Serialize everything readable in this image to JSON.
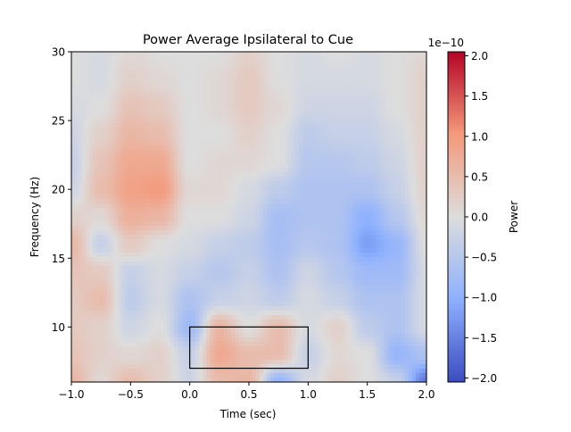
{
  "chart_data": {
    "type": "heatmap",
    "title": "Power Average Ipsilateral to Cue",
    "xlabel": "Time (sec)",
    "ylabel": "Frequency (Hz)",
    "xlim": [
      -1.0,
      2.0
    ],
    "ylim": [
      6,
      30
    ],
    "x_ticks": [
      "−1.0",
      "−0.5",
      "0.0",
      "0.5",
      "1.0",
      "1.5",
      "2.0"
    ],
    "x_tick_values": [
      -1.0,
      -0.5,
      0.0,
      0.5,
      1.0,
      1.5,
      2.0
    ],
    "y_ticks": [
      "10",
      "15",
      "20",
      "25",
      "30"
    ],
    "y_tick_values": [
      10,
      15,
      20,
      25,
      30
    ],
    "colormap": "coolwarm",
    "colorbar": {
      "label": "Power",
      "scale_label": "1e−10",
      "range": [
        -2.05,
        2.05
      ],
      "ticks": [
        "−2.0",
        "−1.5",
        "−1.0",
        "−0.5",
        "0.0",
        "0.5",
        "1.0",
        "1.5",
        "2.0"
      ],
      "tick_values": [
        -2.0,
        -1.5,
        -1.0,
        -0.5,
        0.0,
        0.5,
        1.0,
        1.5,
        2.0
      ]
    },
    "value_unit_scale": "1e-10",
    "times": [
      -1.0,
      -0.75,
      -0.5,
      -0.25,
      0.0,
      0.25,
      0.5,
      0.75,
      1.0,
      1.25,
      1.5,
      1.75,
      2.0
    ],
    "freqs": [
      30,
      28,
      26,
      24,
      22,
      20,
      18,
      16,
      14,
      12,
      10,
      8,
      6
    ],
    "values": [
      [
        0,
        -0.1,
        0.1,
        0,
        0,
        0,
        0.2,
        0,
        -0.1,
        0,
        -0.1,
        0,
        0.1
      ],
      [
        0,
        -0.1,
        0.2,
        0.1,
        0,
        0.1,
        0.3,
        0,
        -0.1,
        -0.1,
        -0.1,
        0,
        0.2
      ],
      [
        -0.1,
        0,
        0.4,
        0.3,
        0,
        0.1,
        0.3,
        0.1,
        -0.2,
        -0.2,
        -0.2,
        0,
        0.2
      ],
      [
        -0.2,
        0.2,
        0.6,
        0.5,
        0,
        0,
        0.2,
        0,
        -0.4,
        -0.3,
        -0.3,
        -0.1,
        0.2
      ],
      [
        -0.3,
        0.4,
        0.8,
        0.8,
        0,
        0.1,
        0.1,
        0,
        -0.5,
        -0.5,
        -0.4,
        -0.2,
        0.2
      ],
      [
        -0.2,
        0.5,
        0.9,
        1.0,
        0.1,
        0.1,
        -0.1,
        -0.4,
        -0.6,
        -0.6,
        -0.6,
        -0.3,
        0.2
      ],
      [
        0.2,
        0.1,
        0.7,
        0.6,
        0,
        0,
        -0.2,
        -0.7,
        -0.6,
        -0.6,
        -1.0,
        -0.5,
        0.1
      ],
      [
        0.6,
        -0.3,
        0.3,
        0,
        -0.1,
        -0.3,
        -0.4,
        -0.7,
        -0.5,
        -0.6,
        -1.2,
        -0.9,
        0
      ],
      [
        0.4,
        0.3,
        -0.3,
        -0.1,
        -0.3,
        -0.5,
        -0.3,
        -0.6,
        -0.2,
        -0.5,
        -0.8,
        -0.8,
        -0.1
      ],
      [
        0.3,
        0.5,
        -0.4,
        -0.1,
        -0.6,
        -0.3,
        -0.2,
        -0.4,
        -0.1,
        -0.3,
        -0.6,
        -0.6,
        -0.1
      ],
      [
        0.3,
        0.2,
        -0.2,
        0,
        -0.8,
        0.6,
        0,
        0.5,
        -0.1,
        0.2,
        -0.4,
        -0.6,
        -0.1
      ],
      [
        0.4,
        0.2,
        0.1,
        0.2,
        -0.3,
        0.8,
        0.5,
        0.5,
        -0.3,
        0.1,
        0,
        -0.9,
        -0.6
      ],
      [
        0.6,
        0.1,
        0.5,
        0.2,
        -0.2,
        0.5,
        0.6,
        -0.9,
        -0.1,
        0.2,
        0,
        -0.3,
        -1.6
      ]
    ],
    "annotations": [
      {
        "type": "rectangle",
        "time_range": [
          0.0,
          1.0
        ],
        "freq_range": [
          7,
          10
        ],
        "color": "#000000"
      }
    ],
    "grid": false,
    "legend": "none"
  }
}
